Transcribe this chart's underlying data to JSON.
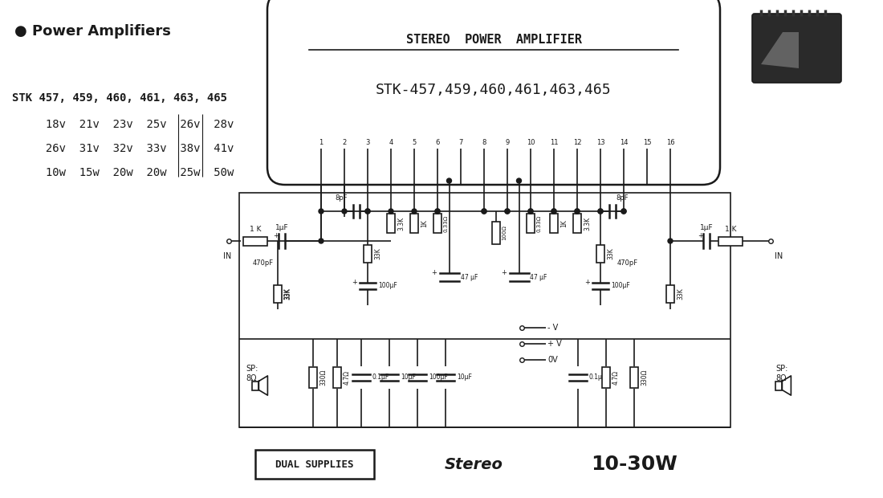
{
  "bg_color": "#ffffff",
  "title_box_text1": "STEREO  POWER  AMPLIFIER",
  "title_box_text2": "STK-457,459,460,461,463,465",
  "header_text": "● Power Amplifiers",
  "stk_line1": "STK 457, 459, 460, 461, 463, 465",
  "stk_line2": "     18v  21v  23v |25v  26v  28v",
  "stk_line3": "     26v  31v  32v  33v  38v  41v",
  "stk_line4": "     10w  15w  20w  20w|25w |50w",
  "bottom_text1": "DUAL SUPPLIES",
  "bottom_text2": "Stereo",
  "bottom_text3": "10-30W",
  "black": "#1a1a1a"
}
